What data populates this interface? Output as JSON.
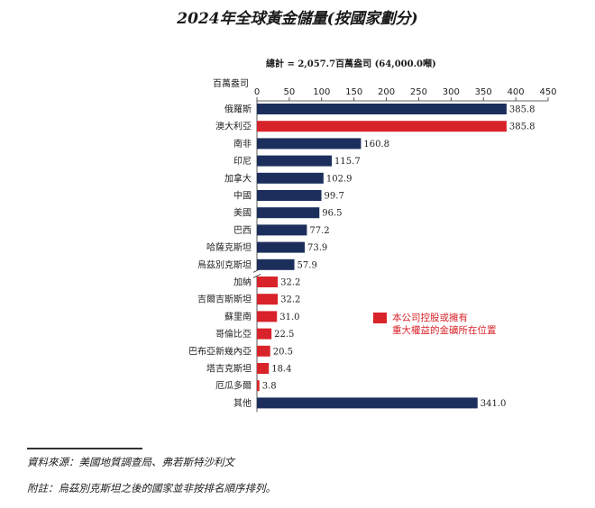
{
  "title": "2024年全球黃金儲量(按國家劃分)",
  "total_label": "總計 = 2,057.7百萬盎司 (64,000.0噸)",
  "legend_text": [
    "本公司控股或擁有",
    "重大權益的金礦所在位置"
  ],
  "footer": {
    "source": "資料來源：美國地質調查局、弗若斯特沙利文",
    "note": "附註：烏茲別克斯坦之後的國家並非按排名順序排列。"
  },
  "colors": {
    "navy": "#1c2f5c",
    "red": "#d8232a"
  },
  "chart_data": {
    "type": "bar",
    "orientation": "horizontal",
    "ylabel": "百萬盎司",
    "xlim": [
      0,
      450
    ],
    "xticks": [
      0,
      50,
      100,
      150,
      200,
      250,
      300,
      350,
      400,
      450
    ],
    "categories": [
      "俄羅斯",
      "澳大利亞",
      "南非",
      "印尼",
      "加拿大",
      "中國",
      "美國",
      "巴西",
      "哈薩克斯坦",
      "烏茲別克斯坦",
      "加納",
      "吉爾吉斯斯坦",
      "蘇里南",
      "哥倫比亞",
      "巴布亞新幾內亞",
      "塔吉克斯坦",
      "厄瓜多爾",
      "其他"
    ],
    "values": [
      385.8,
      385.8,
      160.8,
      115.7,
      102.9,
      99.7,
      96.5,
      77.2,
      73.9,
      57.9,
      32.2,
      32.2,
      31.0,
      22.5,
      20.5,
      18.4,
      3.8,
      341.0
    ],
    "value_labels": [
      "385.8",
      "385.8",
      "160.8",
      "115.7",
      "102.9",
      "99.7",
      "96.5",
      "77.2",
      "73.9",
      "57.9",
      "32.2",
      "32.2",
      "31.0",
      "22.5",
      "20.5",
      "18.4",
      "3.8",
      "341.0"
    ],
    "highlight": [
      false,
      true,
      false,
      false,
      false,
      false,
      false,
      false,
      false,
      false,
      true,
      true,
      true,
      true,
      true,
      true,
      true,
      false
    ]
  }
}
